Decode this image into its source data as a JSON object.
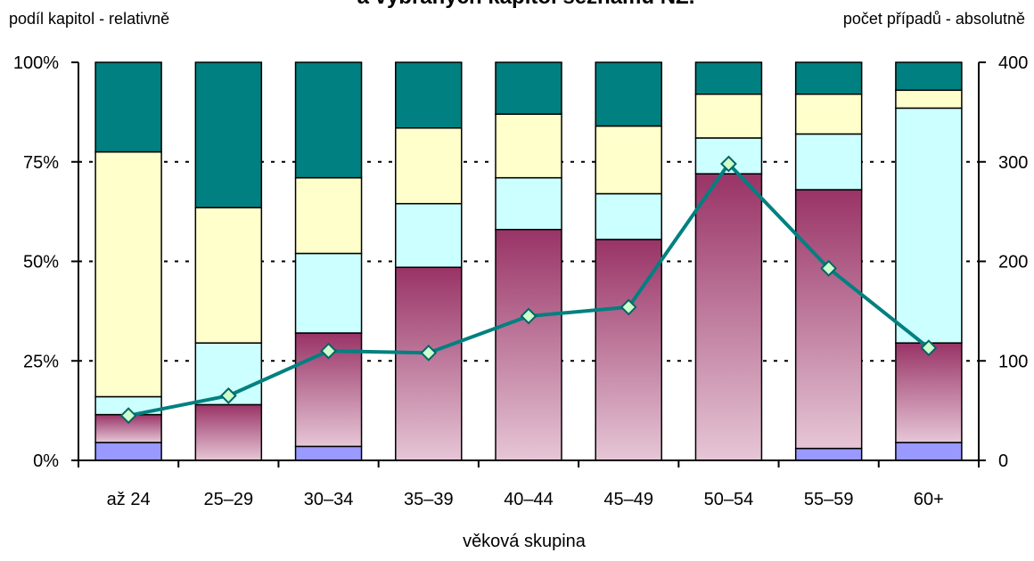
{
  "chart_data": {
    "type": "bar",
    "subtype": "stacked-100-percent-with-line",
    "title": "a vybraných kapitol seznamu NZ.",
    "left_axis_label": "podíl kapitol - relativně",
    "right_axis_label": "počet případů - absolutně",
    "xlabel": "věková skupina",
    "categories": [
      "až 24",
      "25–29",
      "30–34",
      "35–39",
      "40–44",
      "45–49",
      "50–54",
      "55–59",
      "60+"
    ],
    "y_left": {
      "ticks": [
        "0%",
        "25%",
        "50%",
        "75%",
        "100%"
      ],
      "range": [
        0,
        100
      ]
    },
    "y_right": {
      "ticks": [
        "0",
        "100",
        "200",
        "300",
        "400"
      ],
      "range": [
        0,
        400
      ]
    },
    "grid": "dashed horizontal at 25%, 50%, 75%",
    "stack_series": [
      {
        "color": "#9999ff",
        "values": [
          4.5,
          0,
          3.5,
          0,
          0,
          0,
          0,
          3,
          4.5
        ]
      },
      {
        "color": "gradient #993366 to #e6c6d6",
        "values": [
          7,
          14,
          28.5,
          48.5,
          58,
          55.5,
          72,
          65,
          25
        ]
      },
      {
        "color": "#ccffff",
        "values": [
          4.5,
          15.5,
          20,
          16,
          13,
          11.5,
          9,
          14,
          59
        ]
      },
      {
        "color": "#ffffcc",
        "values": [
          61.5,
          34,
          19,
          19,
          16,
          17,
          11,
          10,
          4.5
        ]
      },
      {
        "color": "#008080",
        "values": [
          22.5,
          36.5,
          29,
          16.5,
          13,
          16,
          8,
          8,
          7
        ]
      }
    ],
    "line_series": {
      "axis": "right",
      "color": "#008080",
      "marker": "diamond",
      "values": [
        45,
        65,
        110,
        108,
        145,
        154,
        298,
        193,
        113
      ]
    }
  }
}
